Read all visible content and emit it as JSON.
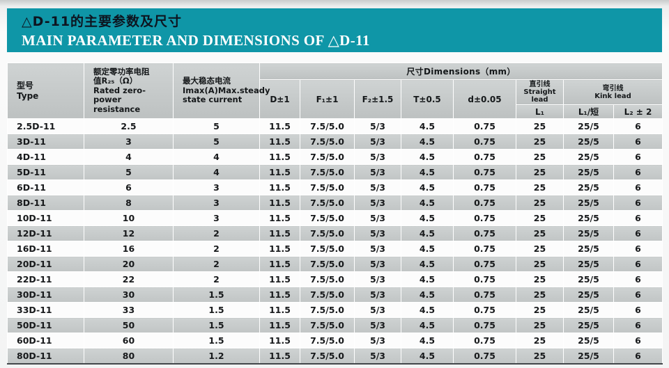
{
  "banner": {
    "title_zh": "△D-11的主要参数及尺寸",
    "title_en": "MAIN PARAMETER AND DIMENSIONS OF △D-11"
  },
  "colors": {
    "banner_bg": "#0f96a7",
    "header_gray": "#c6caca",
    "row_gray": "#c8cccc",
    "row_white": "#fcfcfc"
  },
  "table": {
    "header": {
      "type_zh": "型号",
      "type_en": "Type",
      "resistance_lines": [
        "额定零功率电阻",
        "值R₂₅（Ω）",
        "Rated zero-power",
        "resistance"
      ],
      "current_lines": [
        "最大稳态电流",
        "Imax(A)Max.steady",
        "state current"
      ],
      "dimensions_title": "尺寸Dimensions（mm）",
      "dim_cols": [
        "D±1",
        "F₁±1",
        "F₂±1.5",
        "T±0.5",
        "d±0.05"
      ],
      "straight_lead_zh": "直引线",
      "straight_lead_en": "Straight lead",
      "kink_lead_zh": "弯引线",
      "kink_lead_en": "Kink lead",
      "l1_label": "L₁",
      "l1_short_label": "L₁/短",
      "l2_label": "L₂ ± 2"
    },
    "rows": [
      [
        "2.5D-11",
        "2.5",
        "5",
        "11.5",
        "7.5/5.0",
        "5/3",
        "4.5",
        "0.75",
        "25",
        "25/5",
        "6"
      ],
      [
        "3D-11",
        "3",
        "5",
        "11.5",
        "7.5/5.0",
        "5/3",
        "4.5",
        "0.75",
        "25",
        "25/5",
        "6"
      ],
      [
        "4D-11",
        "4",
        "4",
        "11.5",
        "7.5/5.0",
        "5/3",
        "4.5",
        "0.75",
        "25",
        "25/5",
        "6"
      ],
      [
        "5D-11",
        "5",
        "4",
        "11.5",
        "7.5/5.0",
        "5/3",
        "4.5",
        "0.75",
        "25",
        "25/5",
        "6"
      ],
      [
        "6D-11",
        "6",
        "3",
        "11.5",
        "7.5/5.0",
        "5/3",
        "4.5",
        "0.75",
        "25",
        "25/5",
        "6"
      ],
      [
        "8D-11",
        "8",
        "3",
        "11.5",
        "7.5/5.0",
        "5/3",
        "4.5",
        "0.75",
        "25",
        "25/5",
        "6"
      ],
      [
        "10D-11",
        "10",
        "3",
        "11.5",
        "7.5/5.0",
        "5/3",
        "4.5",
        "0.75",
        "25",
        "25/5",
        "6"
      ],
      [
        "12D-11",
        "12",
        "2",
        "11.5",
        "7.5/5.0",
        "5/3",
        "4.5",
        "0.75",
        "25",
        "25/5",
        "6"
      ],
      [
        "16D-11",
        "16",
        "2",
        "11.5",
        "7.5/5.0",
        "5/3",
        "4.5",
        "0.75",
        "25",
        "25/5",
        "6"
      ],
      [
        "20D-11",
        "20",
        "2",
        "11.5",
        "7.5/5.0",
        "5/3",
        "4.5",
        "0.75",
        "25",
        "25/5",
        "6"
      ],
      [
        "22D-11",
        "22",
        "2",
        "11.5",
        "7.5/5.0",
        "5/3",
        "4.5",
        "0.75",
        "25",
        "25/5",
        "6"
      ],
      [
        "30D-11",
        "30",
        "1.5",
        "11.5",
        "7.5/5.0",
        "5/3",
        "4.5",
        "0.75",
        "25",
        "25/5",
        "6"
      ],
      [
        "33D-11",
        "33",
        "1.5",
        "11.5",
        "7.5/5.0",
        "5/3",
        "4.5",
        "0.75",
        "25",
        "25/5",
        "6"
      ],
      [
        "50D-11",
        "50",
        "1.5",
        "11.5",
        "7.5/5.0",
        "5/3",
        "4.5",
        "0.75",
        "25",
        "25/5",
        "6"
      ],
      [
        "60D-11",
        "60",
        "1.5",
        "11.5",
        "7.5/5.0",
        "5/3",
        "4.5",
        "0.75",
        "25",
        "25/5",
        "6"
      ],
      [
        "80D-11",
        "80",
        "1.2",
        "11.5",
        "7.5/5.0",
        "5/3",
        "4.5",
        "0.75",
        "25",
        "25/5",
        "6"
      ]
    ]
  }
}
